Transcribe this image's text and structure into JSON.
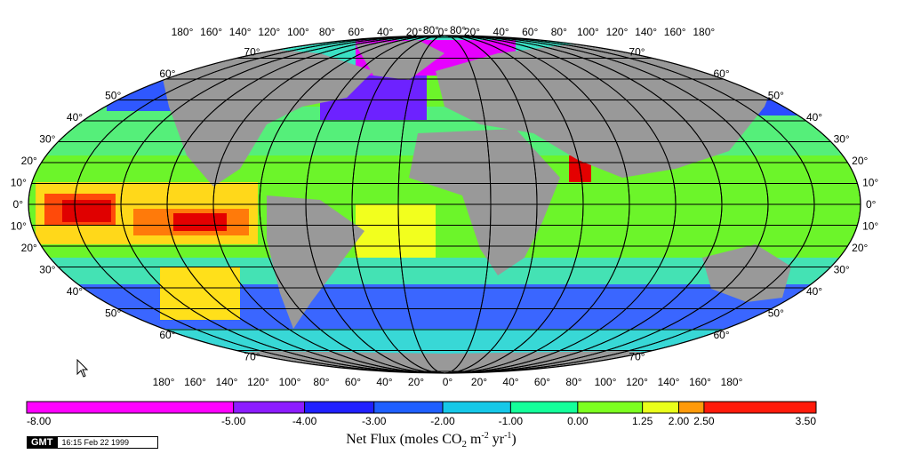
{
  "map": {
    "projection": "Robinson",
    "land_color": "#999999",
    "background": "#ffffff",
    "top_lon_labels": [
      "180°",
      "160°",
      "140°",
      "120°",
      "100°",
      "80°",
      "60°",
      "40°",
      "20°",
      "0°",
      "20°",
      "40°",
      "60°",
      "80°",
      "100°",
      "120°",
      "140°",
      "160°",
      "180°"
    ],
    "bottom_lon_labels": [
      "180°",
      "160°",
      "140°",
      "120°",
      "100°",
      "80°",
      "60°",
      "40°",
      "20°",
      "0°",
      "20°",
      "40°",
      "60°",
      "80°",
      "100°",
      "120°",
      "140°",
      "160°",
      "180°"
    ],
    "lat_labels_left": [
      "80°",
      "70°",
      "60°",
      "50°",
      "40°",
      "30°",
      "20°",
      "10°",
      "0°",
      "10°",
      "20°",
      "30°",
      "40°",
      "50°",
      "60°",
      "70°"
    ],
    "lat_labels_right": [
      "80°",
      "70°",
      "60°",
      "50°",
      "40°",
      "30°",
      "20°",
      "10°",
      "0°",
      "10°",
      "20°",
      "30°",
      "40°",
      "50°",
      "60°",
      "70°"
    ]
  },
  "colorbar": {
    "ticks": [
      "-8.00",
      "-5.00",
      "-4.00",
      "-3.00",
      "-2.00",
      "-1.00",
      "0.00",
      "1.25",
      "2.00",
      "2.50",
      "3.50"
    ],
    "colors": [
      "#ff00ff",
      "#8c1cff",
      "#2020ff",
      "#1f5fff",
      "#16c8e8",
      "#14ff9a",
      "#7cff20",
      "#e9ff1a",
      "#ff9a0a",
      "#ff1a0a"
    ],
    "title_main": "Net Flux (moles CO",
    "title_sub": "2",
    "title_mid": " m",
    "title_sup1": "-2",
    "title_mid2": " yr",
    "title_sup2": "-1",
    "title_end": ")"
  },
  "gmt": {
    "logo": "GMT",
    "timestamp": "16:15 Feb 22 1999"
  }
}
